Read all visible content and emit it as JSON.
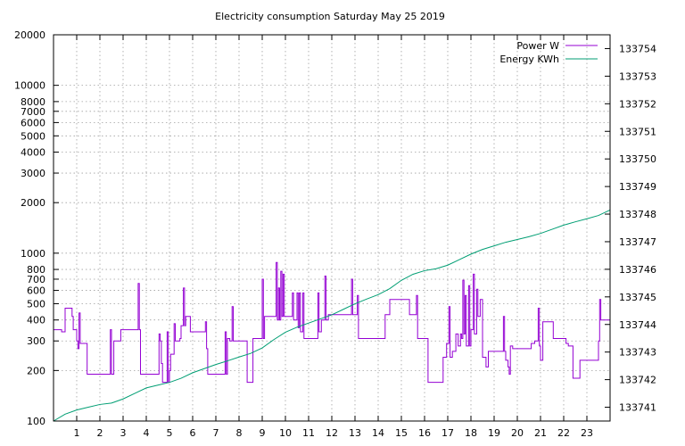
{
  "chart_data": {
    "type": "line",
    "title": "Electricity consumption Saturday May 25 2019",
    "xlabel": "",
    "ylabel": "",
    "y2label": "",
    "grid": true,
    "legend_position": "top-right",
    "x_range": [
      0,
      24
    ],
    "x_ticks": [
      1,
      2,
      3,
      4,
      5,
      6,
      7,
      8,
      9,
      10,
      11,
      12,
      13,
      14,
      15,
      16,
      17,
      18,
      19,
      20,
      21,
      22,
      23
    ],
    "y_scale": "log",
    "y_range": [
      100,
      20000
    ],
    "y_ticks": [
      100,
      200,
      300,
      400,
      500,
      600,
      700,
      800,
      1000,
      2000,
      3000,
      4000,
      5000,
      6000,
      7000,
      8000,
      10000,
      20000
    ],
    "y_tick_labels": [
      "100",
      "200",
      "300",
      "400",
      "500",
      "600",
      "700",
      "800",
      "1000",
      "2000",
      "3000",
      "4000",
      "5000",
      "6000",
      "7000",
      "8000",
      "10000",
      "20000"
    ],
    "y2_range": [
      133740.5,
      133754.5
    ],
    "y2_ticks": [
      133741,
      133742,
      133743,
      133744,
      133745,
      133746,
      133747,
      133748,
      133749,
      133750,
      133751,
      133752,
      133753,
      133754
    ],
    "series": [
      {
        "name": "Power W",
        "axis": "left",
        "color": "#9400d3",
        "step": true,
        "points": [
          [
            0,
            350
          ],
          [
            0.35,
            340
          ],
          [
            0.5,
            470
          ],
          [
            0.75,
            470
          ],
          [
            0.8,
            420
          ],
          [
            0.85,
            350
          ],
          [
            1.0,
            300
          ],
          [
            1.05,
            270
          ],
          [
            1.1,
            440
          ],
          [
            1.15,
            290
          ],
          [
            1.3,
            290
          ],
          [
            1.45,
            190
          ],
          [
            2.0,
            190
          ],
          [
            2.4,
            190
          ],
          [
            2.45,
            350
          ],
          [
            2.5,
            190
          ],
          [
            2.55,
            190
          ],
          [
            2.6,
            300
          ],
          [
            2.85,
            300
          ],
          [
            2.9,
            350
          ],
          [
            3.6,
            350
          ],
          [
            3.65,
            660
          ],
          [
            3.7,
            350
          ],
          [
            3.75,
            190
          ],
          [
            4.1,
            190
          ],
          [
            4.5,
            190
          ],
          [
            4.55,
            330
          ],
          [
            4.6,
            300
          ],
          [
            4.65,
            220
          ],
          [
            4.7,
            170
          ],
          [
            4.9,
            340
          ],
          [
            4.95,
            170
          ],
          [
            5.0,
            200
          ],
          [
            5.05,
            250
          ],
          [
            5.2,
            380
          ],
          [
            5.25,
            300
          ],
          [
            5.45,
            310
          ],
          [
            5.5,
            370
          ],
          [
            5.6,
            620
          ],
          [
            5.65,
            370
          ],
          [
            5.7,
            420
          ],
          [
            5.9,
            340
          ],
          [
            6.5,
            340
          ],
          [
            6.55,
            390
          ],
          [
            6.6,
            270
          ],
          [
            6.65,
            190
          ],
          [
            6.9,
            190
          ],
          [
            7.35,
            190
          ],
          [
            7.4,
            340
          ],
          [
            7.45,
            190
          ],
          [
            7.5,
            310
          ],
          [
            7.6,
            300
          ],
          [
            7.7,
            480
          ],
          [
            7.75,
            300
          ],
          [
            8.3,
            300
          ],
          [
            8.35,
            170
          ],
          [
            8.55,
            170
          ],
          [
            8.6,
            310
          ],
          [
            8.9,
            310
          ],
          [
            9.0,
            700
          ],
          [
            9.05,
            310
          ],
          [
            9.1,
            420
          ],
          [
            9.55,
            420
          ],
          [
            9.6,
            880
          ],
          [
            9.65,
            400
          ],
          [
            9.7,
            620
          ],
          [
            9.75,
            400
          ],
          [
            9.8,
            780
          ],
          [
            9.85,
            420
          ],
          [
            9.9,
            750
          ],
          [
            9.95,
            420
          ],
          [
            10.3,
            580
          ],
          [
            10.35,
            400
          ],
          [
            10.5,
            580
          ],
          [
            10.55,
            360
          ],
          [
            10.6,
            580
          ],
          [
            10.65,
            340
          ],
          [
            10.75,
            580
          ],
          [
            10.8,
            310
          ],
          [
            11.35,
            310
          ],
          [
            11.4,
            580
          ],
          [
            11.45,
            340
          ],
          [
            11.55,
            400
          ],
          [
            11.7,
            730
          ],
          [
            11.75,
            400
          ],
          [
            11.85,
            430
          ],
          [
            12.6,
            430
          ],
          [
            12.75,
            430
          ],
          [
            12.85,
            700
          ],
          [
            12.9,
            430
          ],
          [
            13.1,
            560
          ],
          [
            13.15,
            310
          ],
          [
            14.2,
            310
          ],
          [
            14.3,
            430
          ],
          [
            14.5,
            530
          ],
          [
            15.3,
            530
          ],
          [
            15.35,
            430
          ],
          [
            15.6,
            430
          ],
          [
            15.65,
            560
          ],
          [
            15.7,
            310
          ],
          [
            16.1,
            310
          ],
          [
            16.15,
            170
          ],
          [
            16.75,
            170
          ],
          [
            16.8,
            240
          ],
          [
            16.95,
            290
          ],
          [
            17.05,
            480
          ],
          [
            17.1,
            240
          ],
          [
            17.2,
            260
          ],
          [
            17.25,
            260
          ],
          [
            17.35,
            330
          ],
          [
            17.45,
            280
          ],
          [
            17.55,
            330
          ],
          [
            17.6,
            310
          ],
          [
            17.65,
            690
          ],
          [
            17.7,
            330
          ],
          [
            17.75,
            560
          ],
          [
            17.8,
            280
          ],
          [
            17.9,
            640
          ],
          [
            17.95,
            280
          ],
          [
            18.0,
            350
          ],
          [
            18.1,
            750
          ],
          [
            18.15,
            330
          ],
          [
            18.25,
            610
          ],
          [
            18.3,
            420
          ],
          [
            18.4,
            530
          ],
          [
            18.5,
            240
          ],
          [
            18.6,
            240
          ],
          [
            18.65,
            210
          ],
          [
            18.75,
            260
          ],
          [
            19.1,
            260
          ],
          [
            19.35,
            260
          ],
          [
            19.4,
            420
          ],
          [
            19.45,
            260
          ],
          [
            19.5,
            230
          ],
          [
            19.6,
            210
          ],
          [
            19.65,
            190
          ],
          [
            19.7,
            280
          ],
          [
            19.8,
            270
          ],
          [
            20.55,
            270
          ],
          [
            20.6,
            290
          ],
          [
            20.75,
            300
          ],
          [
            20.9,
            470
          ],
          [
            20.95,
            280
          ],
          [
            21.0,
            230
          ],
          [
            21.1,
            390
          ],
          [
            21.3,
            390
          ],
          [
            21.55,
            310
          ],
          [
            22.0,
            310
          ],
          [
            22.1,
            290
          ],
          [
            22.2,
            280
          ],
          [
            22.4,
            180
          ],
          [
            22.6,
            180
          ],
          [
            22.7,
            230
          ],
          [
            23.4,
            230
          ],
          [
            23.5,
            300
          ],
          [
            23.55,
            530
          ],
          [
            23.6,
            400
          ],
          [
            24.0,
            400
          ]
        ]
      },
      {
        "name": "Energy KWh",
        "axis": "right",
        "color": "#009e73",
        "step": false,
        "points": [
          [
            0,
            133740.5
          ],
          [
            0.5,
            133740.75
          ],
          [
            1.0,
            133740.9
          ],
          [
            1.5,
            133741.0
          ],
          [
            2.0,
            133741.1
          ],
          [
            2.5,
            133741.15
          ],
          [
            3.0,
            133741.3
          ],
          [
            3.5,
            133741.5
          ],
          [
            4.0,
            133741.7
          ],
          [
            4.5,
            133741.8
          ],
          [
            5.0,
            133741.9
          ],
          [
            5.5,
            133742.05
          ],
          [
            6.0,
            133742.25
          ],
          [
            6.5,
            133742.4
          ],
          [
            7.0,
            133742.55
          ],
          [
            7.5,
            133742.68
          ],
          [
            8.0,
            133742.82
          ],
          [
            8.5,
            133742.95
          ],
          [
            9.0,
            133743.15
          ],
          [
            9.5,
            133743.45
          ],
          [
            10.0,
            133743.72
          ],
          [
            10.5,
            133743.9
          ],
          [
            11.0,
            133744.05
          ],
          [
            11.5,
            133744.2
          ],
          [
            12.0,
            133744.35
          ],
          [
            12.5,
            133744.55
          ],
          [
            13.0,
            133744.75
          ],
          [
            13.5,
            133744.92
          ],
          [
            14.0,
            133745.08
          ],
          [
            14.5,
            133745.3
          ],
          [
            15.0,
            133745.6
          ],
          [
            15.5,
            133745.82
          ],
          [
            16.0,
            133745.95
          ],
          [
            16.5,
            133746.02
          ],
          [
            17.0,
            133746.15
          ],
          [
            17.5,
            133746.35
          ],
          [
            18.0,
            133746.55
          ],
          [
            18.5,
            133746.72
          ],
          [
            19.0,
            133746.85
          ],
          [
            19.5,
            133746.98
          ],
          [
            20.0,
            133747.08
          ],
          [
            20.5,
            133747.18
          ],
          [
            21.0,
            133747.3
          ],
          [
            21.5,
            133747.45
          ],
          [
            22.0,
            133747.6
          ],
          [
            22.5,
            133747.72
          ],
          [
            23.0,
            133747.83
          ],
          [
            23.5,
            133747.95
          ],
          [
            24.0,
            133748.15
          ]
        ]
      }
    ]
  }
}
